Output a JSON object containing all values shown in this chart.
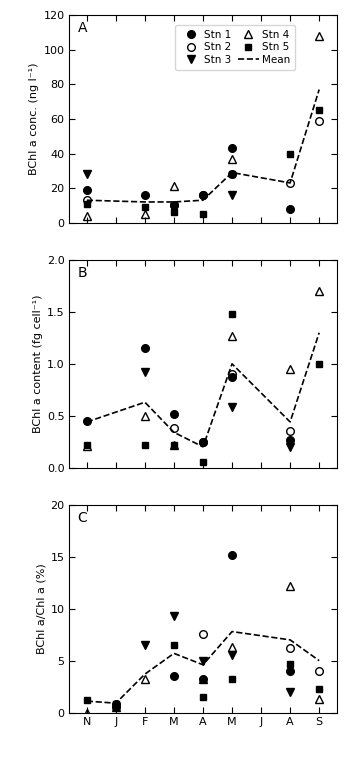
{
  "time_labels": [
    "N",
    "J",
    "F",
    "M",
    "A",
    "M",
    "J",
    "A",
    "S"
  ],
  "time_x": [
    0,
    1,
    2,
    3,
    4,
    5,
    6,
    7,
    8
  ],
  "panel_A": {
    "ylabel": "BChl a conc. (ng l⁻¹)",
    "ylim": [
      0,
      120
    ],
    "yticks": [
      0,
      20,
      40,
      60,
      80,
      100,
      120
    ],
    "stn1": [
      19,
      null,
      16,
      10,
      16,
      43,
      null,
      8,
      null
    ],
    "stn2": [
      13,
      null,
      null,
      10,
      16,
      28,
      null,
      23,
      59
    ],
    "stn3": [
      28,
      null,
      null,
      null,
      null,
      16,
      null,
      null,
      null
    ],
    "stn4": [
      4,
      null,
      5,
      21,
      null,
      37,
      null,
      null,
      108
    ],
    "stn5": [
      11,
      null,
      9,
      6,
      5,
      28,
      null,
      40,
      65
    ],
    "mean": [
      13,
      null,
      12,
      12,
      13,
      29,
      null,
      23,
      77
    ]
  },
  "panel_B": {
    "ylabel": "BChl a content (fg cell⁻¹)",
    "ylim": [
      0.0,
      2.0
    ],
    "yticks": [
      0.0,
      0.5,
      1.0,
      1.5,
      2.0
    ],
    "stn1": [
      0.45,
      null,
      1.15,
      0.52,
      0.25,
      0.87,
      null,
      0.27,
      null
    ],
    "stn2": [
      null,
      null,
      null,
      0.38,
      0.25,
      0.9,
      null,
      0.35,
      null
    ],
    "stn3": [
      null,
      null,
      0.92,
      null,
      null,
      0.58,
      null,
      0.2,
      null
    ],
    "stn4": [
      0.21,
      null,
      0.5,
      0.22,
      null,
      1.27,
      null,
      0.95,
      1.7
    ],
    "stn5": [
      0.22,
      null,
      0.22,
      0.22,
      0.05,
      1.48,
      null,
      null,
      1.0
    ],
    "mean": [
      0.44,
      null,
      0.63,
      0.34,
      0.2,
      1.0,
      null,
      0.44,
      1.3
    ]
  },
  "panel_C": {
    "ylabel": "BChl a/Chl a (%)",
    "ylim": [
      0,
      20
    ],
    "yticks": [
      0,
      5,
      10,
      15,
      20
    ],
    "stn1": [
      null,
      0.5,
      null,
      3.5,
      3.2,
      15.2,
      null,
      4.0,
      null
    ],
    "stn2": [
      null,
      0.8,
      null,
      null,
      7.6,
      null,
      null,
      6.2,
      4.0
    ],
    "stn3": [
      null,
      null,
      6.5,
      9.3,
      5.0,
      5.5,
      null,
      2.0,
      null
    ],
    "stn4": [
      0.0,
      0.5,
      3.2,
      null,
      3.2,
      6.3,
      null,
      12.2,
      1.3
    ],
    "stn5": [
      1.2,
      0.8,
      null,
      6.5,
      1.5,
      3.2,
      null,
      4.7,
      2.3
    ],
    "mean": [
      1.1,
      0.9,
      3.7,
      5.7,
      4.6,
      7.8,
      null,
      7.0,
      5.0
    ]
  },
  "panel_labels": [
    "A",
    "B",
    "C"
  ],
  "fig_width": 3.47,
  "fig_height": 7.58,
  "dpi": 100
}
